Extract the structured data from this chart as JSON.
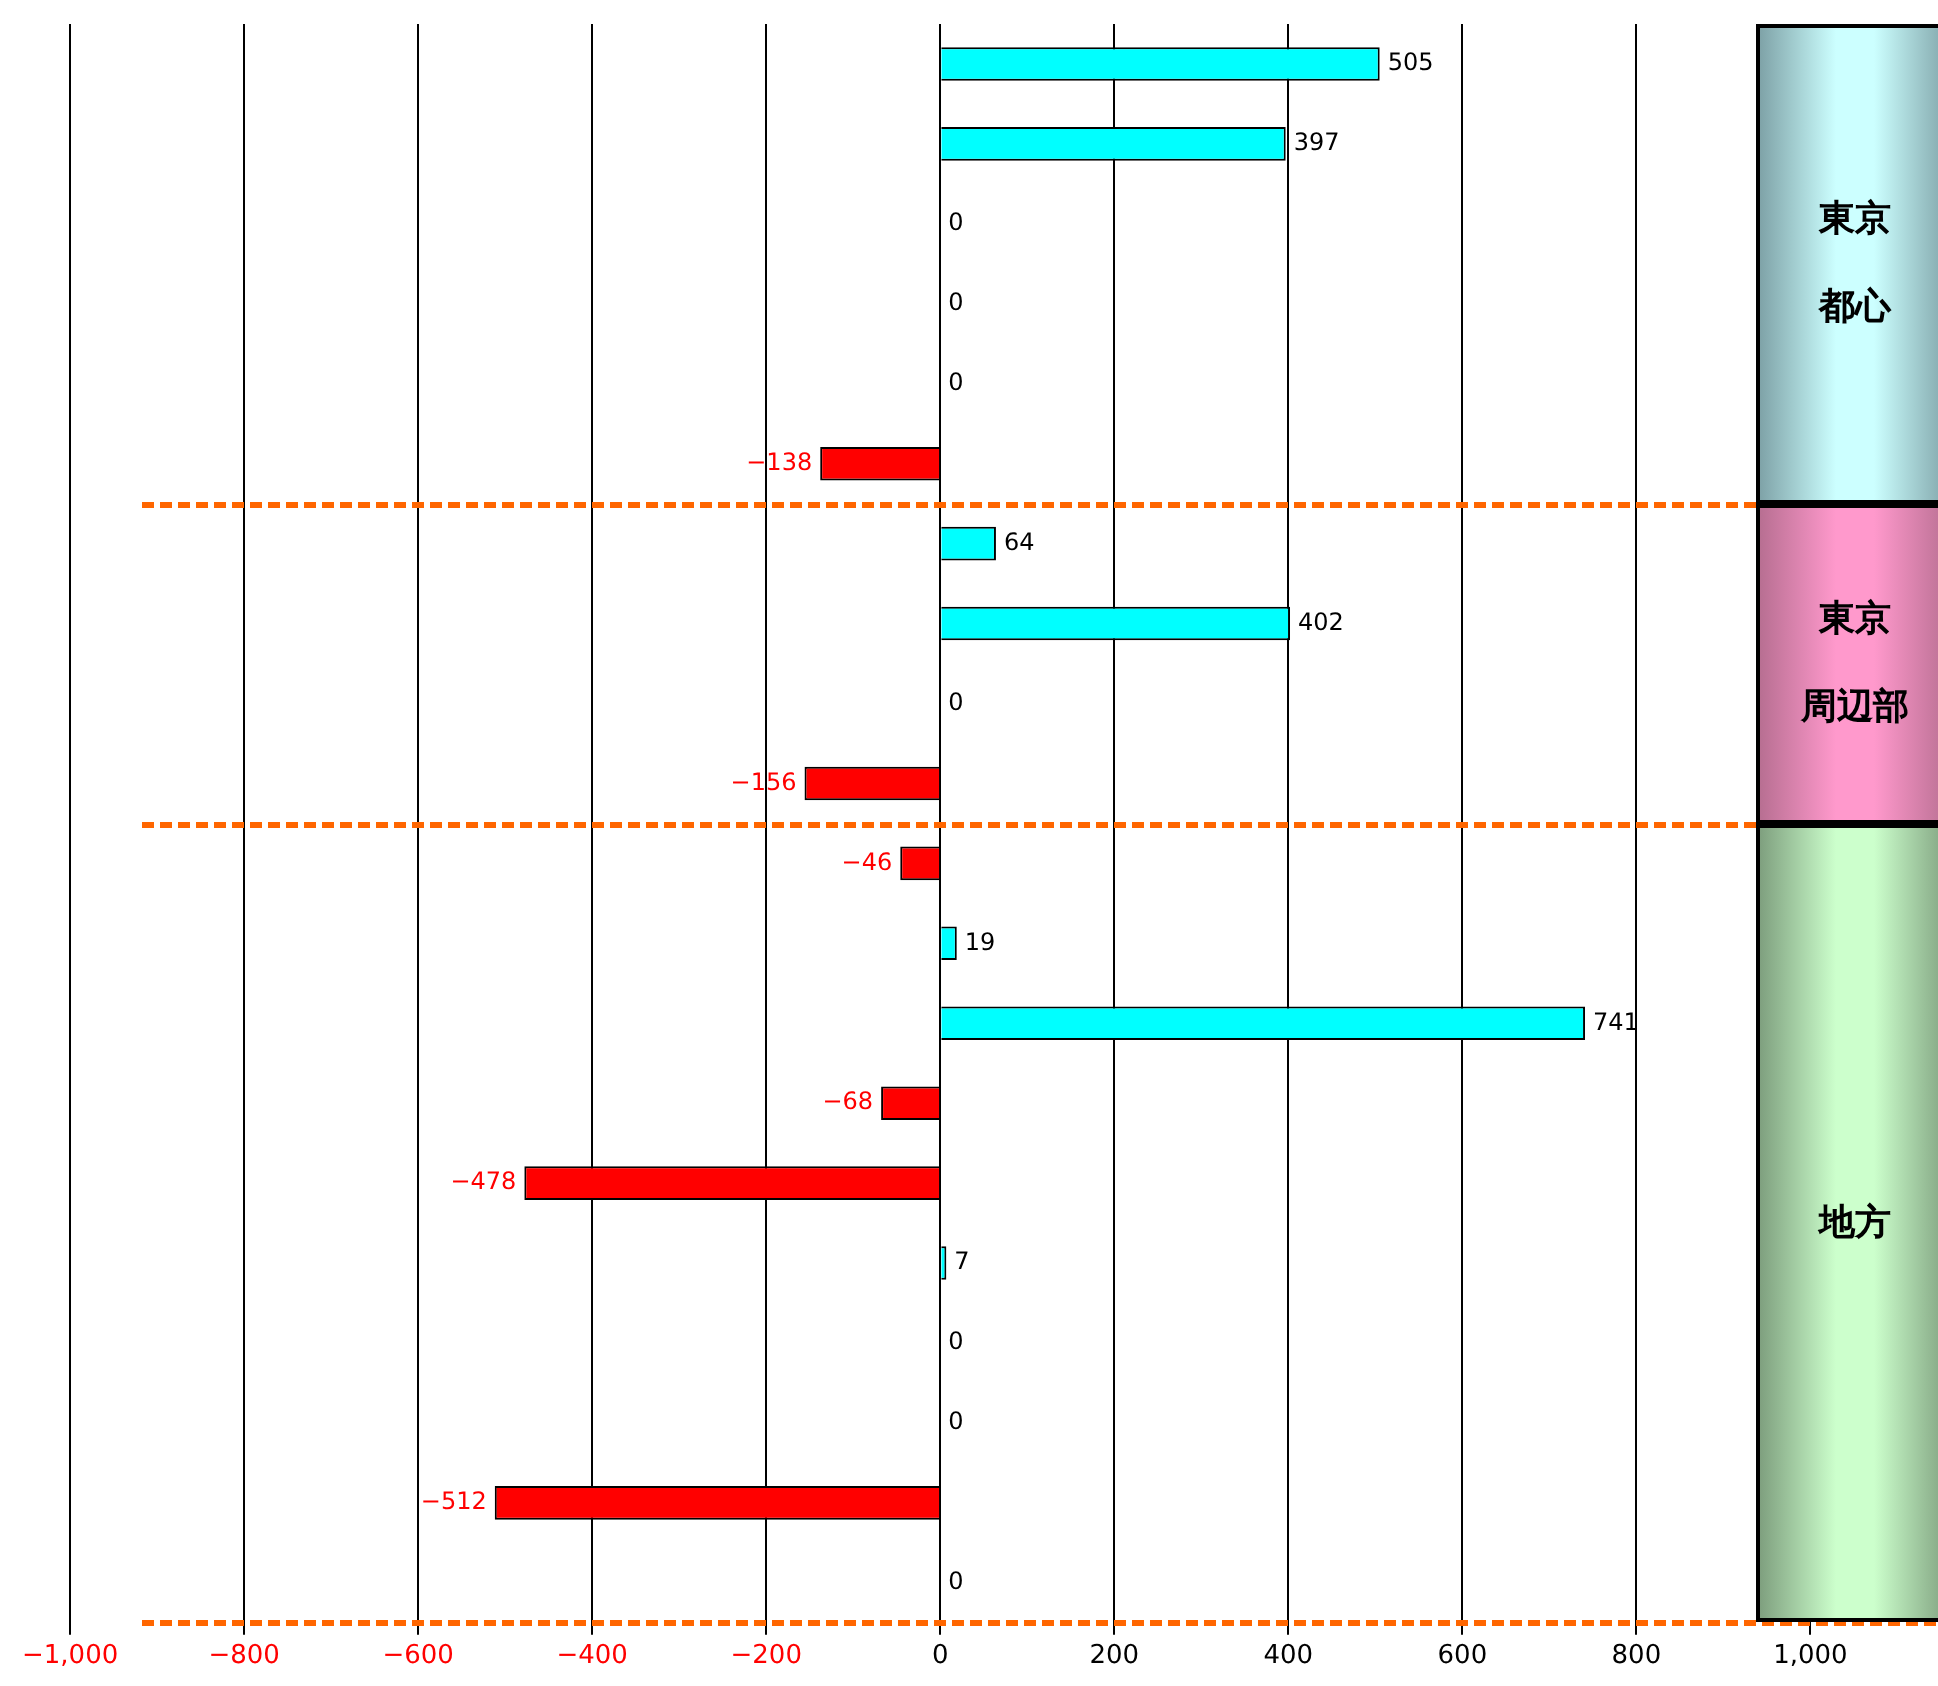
{
  "chart_data": {
    "type": "bar",
    "orientation": "horizontal",
    "categories": [
      null,
      null,
      null,
      null,
      null,
      null,
      null,
      null,
      null,
      null,
      null,
      null,
      null,
      null,
      null,
      null,
      null,
      null,
      null,
      null
    ],
    "values": [
      505,
      397,
      0,
      0,
      0,
      -138,
      64,
      402,
      0,
      -156,
      -46,
      19,
      741,
      -68,
      -478,
      7,
      0,
      0,
      -512,
      0
    ],
    "colors": [
      "#00ffff",
      "#00ffff",
      "#00ffff",
      "#00ffff",
      "#00ffff",
      "#ff0000",
      "#00ffff",
      "#00ffff",
      "#00ffff",
      "#ff0000",
      "#ff0000",
      "#00ffff",
      "#00ffff",
      "#ff0000",
      "#ff0000",
      "#00ffff",
      "#00ffff",
      "#00ffff",
      "#ff0000",
      "#00ffff"
    ],
    "data_labels": true,
    "xlim": [
      -1000,
      1165
    ],
    "xticks": [
      {
        "value": -1000,
        "label": "−1,000"
      },
      {
        "value": -800,
        "label": "−800"
      },
      {
        "value": -600,
        "label": "−600"
      },
      {
        "value": -400,
        "label": "−400"
      },
      {
        "value": -200,
        "label": "−200"
      },
      0,
      200,
      400,
      600,
      800,
      {
        "value": 1000,
        "label": "1,000"
      }
    ],
    "grid": "x",
    "tick_labels": "x",
    "annotations": [
      "東京",
      "都心",
      "東京",
      "周辺部",
      "地方"
    ]
  }
}
